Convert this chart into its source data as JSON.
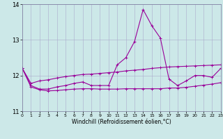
{
  "xlabel": "Windchill (Refroidissement éolien,°C)",
  "background_color": "#cce8e8",
  "line_color": "#990099",
  "x": [
    0,
    1,
    2,
    3,
    4,
    5,
    6,
    7,
    8,
    9,
    10,
    11,
    12,
    13,
    14,
    15,
    16,
    17,
    18,
    19,
    20,
    21,
    22,
    23
  ],
  "y_main": [
    12.2,
    11.72,
    11.62,
    11.62,
    11.68,
    11.72,
    11.78,
    11.82,
    11.72,
    11.72,
    11.72,
    12.3,
    12.5,
    12.95,
    13.85,
    13.4,
    13.05,
    11.9,
    11.72,
    11.85,
    12.0,
    12.0,
    11.95,
    12.2
  ],
  "y_upper": [
    12.2,
    11.78,
    11.85,
    11.88,
    11.93,
    11.97,
    12.0,
    12.03,
    12.04,
    12.06,
    12.08,
    12.1,
    12.13,
    12.15,
    12.17,
    12.2,
    12.22,
    12.24,
    12.25,
    12.26,
    12.27,
    12.28,
    12.29,
    12.3
  ],
  "y_lower": [
    12.2,
    11.68,
    11.6,
    11.57,
    11.58,
    11.6,
    11.62,
    11.63,
    11.63,
    11.62,
    11.62,
    11.62,
    11.63,
    11.63,
    11.63,
    11.63,
    11.63,
    11.65,
    11.65,
    11.67,
    11.7,
    11.73,
    11.76,
    11.8
  ],
  "ylim": [
    11.0,
    14.0
  ],
  "xlim": [
    0,
    23
  ],
  "yticks": [
    11,
    12,
    13,
    14
  ],
  "xticks": [
    0,
    1,
    2,
    3,
    4,
    5,
    6,
    7,
    8,
    9,
    10,
    11,
    12,
    13,
    14,
    15,
    16,
    17,
    18,
    19,
    20,
    21,
    22,
    23
  ]
}
